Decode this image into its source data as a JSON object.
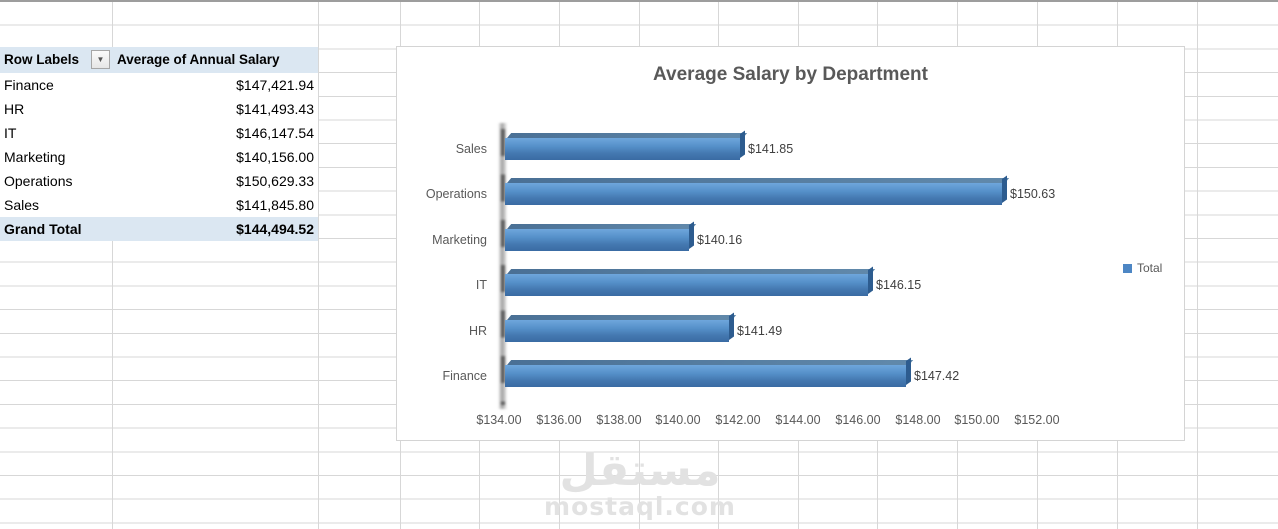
{
  "watermark": {
    "arabic": "مستقل",
    "domain": "mostaql.com"
  },
  "pivot": {
    "header": {
      "row_labels": "Row Labels",
      "filter_icon": "▼",
      "value_column": "Average of Annual Salary"
    },
    "rows": [
      {
        "label": "Finance",
        "value": "$147,421.94"
      },
      {
        "label": "HR",
        "value": "$141,493.43"
      },
      {
        "label": "IT",
        "value": "$146,147.54"
      },
      {
        "label": "Marketing",
        "value": "$140,156.00"
      },
      {
        "label": "Operations",
        "value": "$150,629.33"
      },
      {
        "label": "Sales",
        "value": "$141,845.80"
      }
    ],
    "grand_total": {
      "label": "Grand Total",
      "value": "$144,494.52"
    }
  },
  "chart_data": {
    "type": "bar",
    "orientation": "horizontal",
    "title": "Average Salary by Department",
    "categories": [
      "Sales",
      "Operations",
      "Marketing",
      "IT",
      "HR",
      "Finance"
    ],
    "series": [
      {
        "name": "Total",
        "values": [
          141845.8,
          150629.33,
          140156.0,
          146147.54,
          141493.43,
          147421.94
        ],
        "values_thousands": [
          141.85,
          150.63,
          140.16,
          146.15,
          141.49,
          147.42
        ]
      }
    ],
    "data_labels": [
      "$141.85",
      "$150.63",
      "$140.16",
      "$146.15",
      "$141.49",
      "$147.42"
    ],
    "xlim": [
      134,
      152
    ],
    "x_tick_labels": [
      "$134.00",
      "$136.00",
      "$138.00",
      "$140.00",
      "$142.00",
      "$144.00",
      "$146.00",
      "$148.00",
      "$150.00",
      "$152.00"
    ],
    "legend": {
      "label": "Total",
      "position": "right"
    },
    "grid": false,
    "bar_color": "#4d86c4",
    "title_color": "#595959",
    "label_color": "#404040"
  }
}
